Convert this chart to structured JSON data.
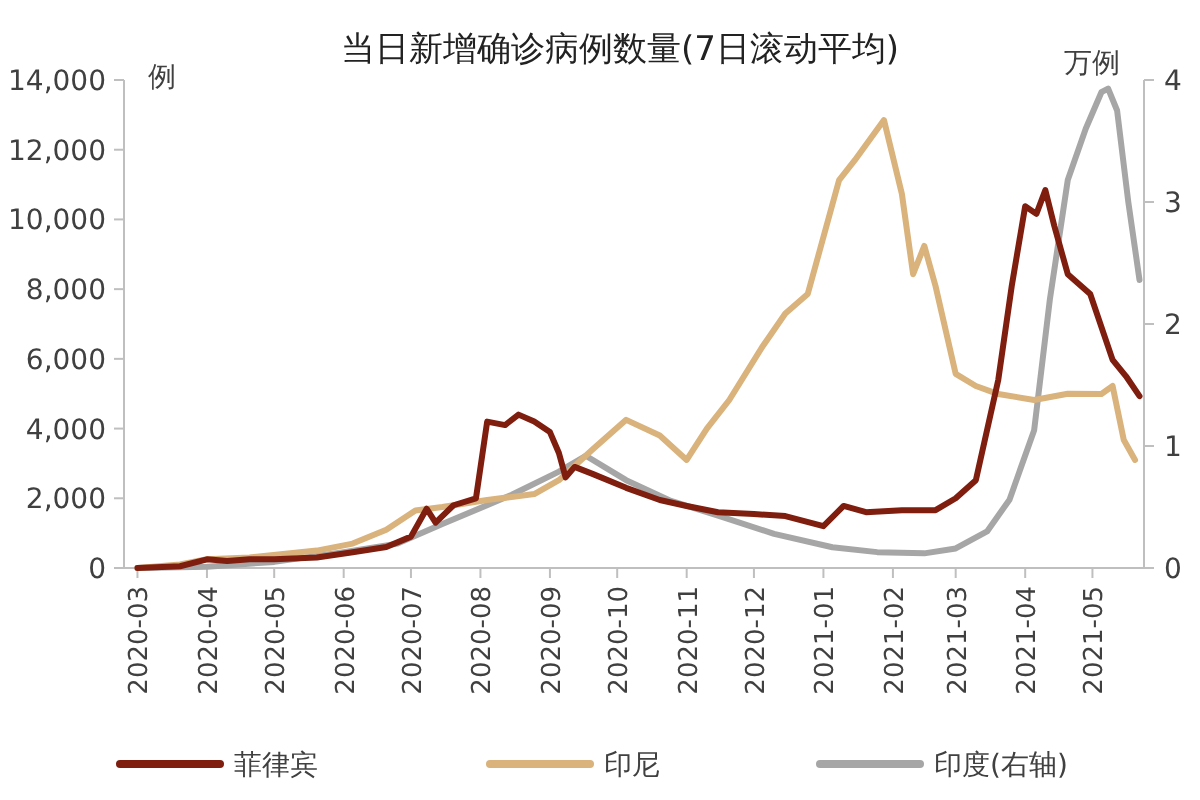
{
  "chart_data": {
    "type": "line",
    "title": "当日新增确诊病例数量(7日滚动平均)",
    "ylabel": "例",
    "y2label": "万例",
    "xlim": [
      "2020-02-24",
      "2021-05-24"
    ],
    "xticks": [
      "2020-03",
      "2020-04",
      "2020-05",
      "2020-06",
      "2020-07",
      "2020-08",
      "2020-09",
      "2020-10",
      "2020-11",
      "2020-12",
      "2021-01",
      "2021-02",
      "2021-03",
      "2021-04",
      "2021-05"
    ],
    "ylim": [
      0,
      14000
    ],
    "yticks": [
      0,
      {
        "value": 2000,
        "label": "2,000"
      },
      {
        "value": 4000,
        "label": "4,000"
      },
      {
        "value": 6000,
        "label": "6,000"
      },
      {
        "value": 8000,
        "label": "8,000"
      },
      {
        "value": 10000,
        "label": "10,000"
      },
      {
        "value": 12000,
        "label": "12,000"
      },
      {
        "value": 14000,
        "label": "14,000"
      }
    ],
    "y2lim": [
      0,
      4
    ],
    "y2ticks": [
      0,
      1,
      2,
      3,
      4
    ],
    "legend": "bottom",
    "marker": "none",
    "line_style": "solid",
    "series": [
      {
        "name": "菲律宾",
        "color": "#7f1d0e",
        "x": [
          "2020-03-01",
          "2020-03-20",
          "2020-04-01",
          "2020-04-10",
          "2020-04-20",
          "2020-05-01",
          "2020-05-20",
          "2020-06-05",
          "2020-06-20",
          "2020-07-01",
          "2020-07-08",
          "2020-07-12",
          "2020-07-20",
          "2020-07-30",
          "2020-08-04",
          "2020-08-12",
          "2020-08-18",
          "2020-08-25",
          "2020-09-01",
          "2020-09-05",
          "2020-09-08",
          "2020-09-12",
          "2020-09-20",
          "2020-10-05",
          "2020-10-20",
          "2020-11-01",
          "2020-11-15",
          "2020-12-01",
          "2020-12-15",
          "2021-01-01",
          "2021-01-10",
          "2021-01-20",
          "2021-02-05",
          "2021-02-20",
          "2021-03-01",
          "2021-03-10",
          "2021-03-20",
          "2021-03-26",
          "2021-04-01",
          "2021-04-06",
          "2021-04-10",
          "2021-04-14",
          "2021-04-20",
          "2021-04-30",
          "2021-05-10",
          "2021-05-16",
          "2021-05-22"
        ],
        "values": [
          0,
          50,
          250,
          200,
          250,
          250,
          300,
          450,
          600,
          900,
          1700,
          1300,
          1800,
          2000,
          4200,
          4100,
          4400,
          4200,
          3900,
          3300,
          2600,
          2900,
          2700,
          2300,
          1950,
          1780,
          1600,
          1550,
          1490,
          1200,
          1780,
          1600,
          1660,
          1660,
          2000,
          2520,
          5400,
          8090,
          10380,
          10160,
          10840,
          9810,
          8430,
          7860,
          5970,
          5500,
          4930
        ]
      },
      {
        "name": "印尼",
        "color": "#d9b27c",
        "x": [
          "2020-03-01",
          "2020-03-20",
          "2020-04-01",
          "2020-04-20",
          "2020-05-05",
          "2020-05-20",
          "2020-06-05",
          "2020-06-20",
          "2020-07-03",
          "2020-07-15",
          "2020-08-04",
          "2020-08-25",
          "2020-09-05",
          "2020-09-20",
          "2020-10-05",
          "2020-10-20",
          "2020-11-01",
          "2020-11-10",
          "2020-11-20",
          "2020-12-05",
          "2020-12-15",
          "2020-12-25",
          "2021-01-08",
          "2021-01-15",
          "2021-01-28",
          "2021-02-05",
          "2021-02-10",
          "2021-02-15",
          "2021-02-20",
          "2021-03-01",
          "2021-03-10",
          "2021-03-20",
          "2021-04-05",
          "2021-04-20",
          "2021-05-05",
          "2021-05-10",
          "2021-05-15",
          "2021-05-20"
        ],
        "values": [
          0,
          100,
          250,
          300,
          400,
          500,
          700,
          1100,
          1650,
          1750,
          1950,
          2120,
          2520,
          3400,
          4250,
          3800,
          3100,
          4000,
          4820,
          6370,
          7300,
          7860,
          11130,
          11700,
          12850,
          10730,
          8430,
          9240,
          8090,
          5570,
          5220,
          4990,
          4820,
          5000,
          4990,
          5220,
          3670,
          3100
        ]
      },
      {
        "name": "印度(右轴)",
        "color": "#a6a6a6",
        "axis": "y2",
        "x": [
          "2020-03-01",
          "2020-04-01",
          "2020-05-01",
          "2020-06-01",
          "2020-06-25",
          "2020-07-15",
          "2020-08-15",
          "2020-09-05",
          "2020-09-17",
          "2020-10-05",
          "2020-10-25",
          "2020-11-15",
          "2020-12-10",
          "2021-01-05",
          "2021-01-25",
          "2021-02-15",
          "2021-03-01",
          "2021-03-15",
          "2021-03-25",
          "2021-04-05",
          "2021-04-12",
          "2021-04-20",
          "2021-04-28",
          "2021-05-05",
          "2021-05-08",
          "2021-05-12",
          "2021-05-17",
          "2021-05-22"
        ],
        "values": [
          0,
          0.01,
          0.05,
          0.13,
          0.2,
          0.36,
          0.6,
          0.79,
          0.92,
          0.72,
          0.55,
          0.43,
          0.28,
          0.17,
          0.13,
          0.12,
          0.16,
          0.3,
          0.56,
          1.13,
          2.2,
          3.18,
          3.6,
          3.9,
          3.93,
          3.75,
          3.0,
          2.36
        ]
      }
    ]
  }
}
